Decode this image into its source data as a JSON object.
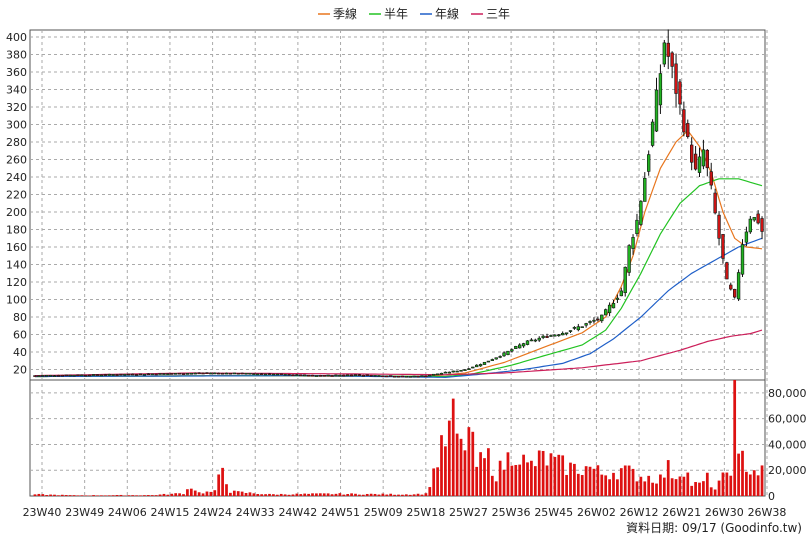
{
  "chart_data": {
    "type": "candlestick-with-volume",
    "legend": [
      {
        "name": "季線",
        "color": "#e8761e"
      },
      {
        "name": "半年",
        "color": "#22c322"
      },
      {
        "name": "年線",
        "color": "#1f5fc8"
      },
      {
        "name": "三年",
        "color": "#cc1f5a"
      }
    ],
    "price_axis": {
      "ticks": [
        20,
        40,
        60,
        80,
        100,
        120,
        140,
        160,
        180,
        200,
        220,
        240,
        260,
        280,
        300,
        320,
        340,
        360,
        380,
        400
      ],
      "ylim": [
        8,
        408
      ]
    },
    "volume_axis": {
      "ticks": [
        "0",
        "20,000",
        "40,000",
        "60,000",
        "80,000"
      ],
      "values": [
        0,
        20000,
        40000,
        60000,
        80000
      ],
      "ylim": [
        0,
        90000
      ]
    },
    "x_ticks": [
      "23W40",
      "23W49",
      "24W06",
      "24W15",
      "24W24",
      "24W33",
      "24W42",
      "24W51",
      "25W09",
      "25W18",
      "25W27",
      "25W36",
      "25W45",
      "26W02",
      "26W12",
      "26W21",
      "26W30",
      "26W38"
    ],
    "colors": {
      "up": "#22b422",
      "down": "#cc1414",
      "volume": "#dd1111",
      "grid": "#aaaaaa"
    },
    "price_keypoints": [
      [
        0,
        13
      ],
      [
        16,
        14
      ],
      [
        30,
        15
      ],
      [
        45,
        16
      ],
      [
        60,
        15
      ],
      [
        72,
        13
      ],
      [
        82,
        14
      ],
      [
        95,
        12
      ],
      [
        100,
        13
      ],
      [
        110,
        20
      ],
      [
        115,
        28
      ],
      [
        120,
        38
      ],
      [
        125,
        50
      ],
      [
        130,
        57
      ],
      [
        135,
        62
      ],
      [
        140,
        70
      ],
      [
        145,
        80
      ],
      [
        150,
        110
      ],
      [
        152,
        160
      ],
      [
        154,
        190
      ],
      [
        156,
        240
      ],
      [
        158,
        300
      ],
      [
        160,
        360
      ],
      [
        161,
        395
      ],
      [
        163,
        360
      ],
      [
        165,
        320
      ],
      [
        167,
        280
      ],
      [
        169,
        245
      ],
      [
        171,
        270
      ],
      [
        173,
        225
      ],
      [
        175,
        170
      ],
      [
        177,
        120
      ],
      [
        179,
        100
      ],
      [
        181,
        165
      ],
      [
        183,
        195
      ],
      [
        185,
        190
      ],
      [
        186,
        178
      ]
    ],
    "volume_keypoints": [
      [
        0,
        1500
      ],
      [
        10,
        600
      ],
      [
        30,
        800
      ],
      [
        38,
        2500
      ],
      [
        40,
        9000
      ],
      [
        42,
        3000
      ],
      [
        46,
        4000
      ],
      [
        48,
        27000
      ],
      [
        50,
        4000
      ],
      [
        60,
        1500
      ],
      [
        75,
        2000
      ],
      [
        95,
        1500
      ],
      [
        100,
        2000
      ],
      [
        101,
        12000
      ],
      [
        103,
        33000
      ],
      [
        105,
        50000
      ],
      [
        107,
        69000
      ],
      [
        109,
        42000
      ],
      [
        111,
        59000
      ],
      [
        113,
        28000
      ],
      [
        116,
        35000
      ],
      [
        118,
        20000
      ],
      [
        123,
        43000
      ],
      [
        126,
        26000
      ],
      [
        130,
        35000
      ],
      [
        134,
        29000
      ],
      [
        138,
        25000
      ],
      [
        142,
        26000
      ],
      [
        145,
        20000
      ],
      [
        150,
        24000
      ],
      [
        155,
        18000
      ],
      [
        160,
        16000
      ],
      [
        162,
        25000
      ],
      [
        164,
        18000
      ],
      [
        166,
        27000
      ],
      [
        168,
        11000
      ],
      [
        170,
        10000
      ],
      [
        172,
        16000
      ],
      [
        174,
        6000
      ],
      [
        176,
        16000
      ],
      [
        178,
        28000
      ],
      [
        179,
        87000
      ],
      [
        180,
        30000
      ],
      [
        181,
        35000
      ],
      [
        183,
        24000
      ],
      [
        186,
        22000
      ]
    ],
    "ma_keypoints": {
      "季線": [
        [
          0,
          12
        ],
        [
          50,
          13
        ],
        [
          100,
          12
        ],
        [
          110,
          16
        ],
        [
          120,
          28
        ],
        [
          130,
          45
        ],
        [
          140,
          62
        ],
        [
          146,
          80
        ],
        [
          150,
          115
        ],
        [
          153,
          150
        ],
        [
          156,
          200
        ],
        [
          160,
          250
        ],
        [
          164,
          280
        ],
        [
          167,
          293
        ],
        [
          170,
          275
        ],
        [
          173,
          245
        ],
        [
          176,
          200
        ],
        [
          179,
          170
        ],
        [
          182,
          160
        ],
        [
          186,
          158
        ]
      ],
      "半年": [
        [
          0,
          12
        ],
        [
          60,
          13
        ],
        [
          105,
          12
        ],
        [
          112,
          15
        ],
        [
          122,
          25
        ],
        [
          132,
          38
        ],
        [
          140,
          48
        ],
        [
          146,
          65
        ],
        [
          150,
          90
        ],
        [
          155,
          130
        ],
        [
          160,
          175
        ],
        [
          165,
          210
        ],
        [
          170,
          230
        ],
        [
          175,
          238
        ],
        [
          180,
          238
        ],
        [
          186,
          230
        ]
      ],
      "年線": [
        [
          0,
          12
        ],
        [
          70,
          13
        ],
        [
          105,
          11
        ],
        [
          115,
          15
        ],
        [
          125,
          20
        ],
        [
          135,
          27
        ],
        [
          142,
          38
        ],
        [
          148,
          55
        ],
        [
          155,
          80
        ],
        [
          162,
          110
        ],
        [
          168,
          130
        ],
        [
          174,
          145
        ],
        [
          180,
          160
        ],
        [
          186,
          170
        ]
      ],
      "三年": [
        [
          0,
          13
        ],
        [
          40,
          16
        ],
        [
          80,
          15
        ],
        [
          105,
          14
        ],
        [
          120,
          16
        ],
        [
          140,
          22
        ],
        [
          155,
          30
        ],
        [
          165,
          42
        ],
        [
          172,
          52
        ],
        [
          178,
          58
        ],
        [
          183,
          61
        ],
        [
          186,
          65
        ]
      ]
    },
    "bars_count": 187
  },
  "footer": "資料日期: 09/17  (Goodinfo.tw)"
}
